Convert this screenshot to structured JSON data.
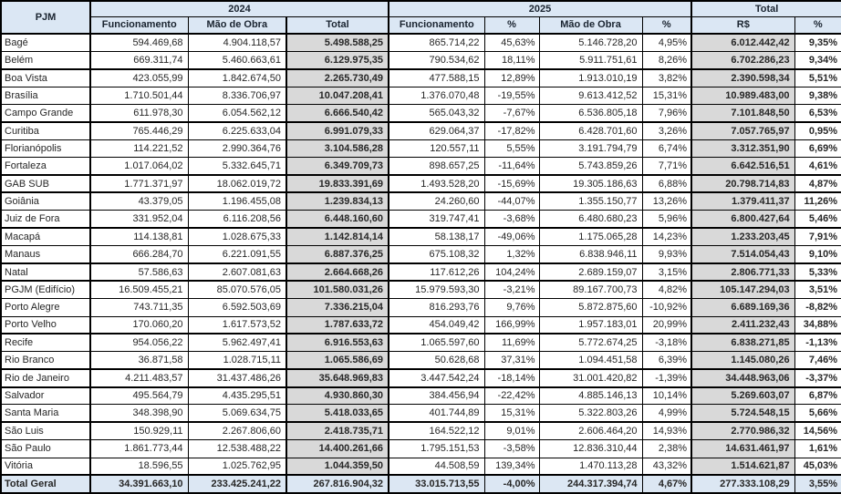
{
  "colors": {
    "header_bg": "#dbe7f4",
    "total_column_bg": "#d9d9d9",
    "total_row_bg": "#dce7f3",
    "border": "#000000"
  },
  "chart_data": {
    "type": "table",
    "corner_header": "PJM",
    "column_groups": [
      {
        "label": "2024",
        "span": 3
      },
      {
        "label": "2025",
        "span": 4
      },
      {
        "label": "Total",
        "span": 2
      }
    ],
    "columns": [
      "Funcionamento",
      "Mão de Obra",
      "Total",
      "Funcionamento",
      "%",
      "Mão de Obra",
      "%",
      "R$",
      "%"
    ],
    "rows": [
      {
        "name": "Bagé",
        "values": [
          "594.469,68",
          "4.904.118,57",
          "5.498.588,25",
          "865.714,22",
          "45,63%",
          "5.146.728,20",
          "4,95%",
          "6.012.442,42",
          "9,35%"
        ],
        "group_end": false
      },
      {
        "name": "Belém",
        "values": [
          "669.311,74",
          "5.460.663,61",
          "6.129.975,35",
          "790.534,62",
          "18,11%",
          "5.911.751,61",
          "8,26%",
          "6.702.286,23",
          "9,34%"
        ],
        "group_end": true
      },
      {
        "name": "Boa Vista",
        "values": [
          "423.055,99",
          "1.842.674,50",
          "2.265.730,49",
          "477.588,15",
          "12,89%",
          "1.913.010,19",
          "3,82%",
          "2.390.598,34",
          "5,51%"
        ],
        "group_end": false
      },
      {
        "name": "Brasília",
        "values": [
          "1.710.501,44",
          "8.336.706,97",
          "10.047.208,41",
          "1.376.070,48",
          "-19,55%",
          "9.613.412,52",
          "15,31%",
          "10.989.483,00",
          "9,38%"
        ],
        "group_end": false
      },
      {
        "name": "Campo Grande",
        "values": [
          "611.978,30",
          "6.054.562,12",
          "6.666.540,42",
          "565.043,32",
          "-7,67%",
          "6.536.805,18",
          "7,96%",
          "7.101.848,50",
          "6,53%"
        ],
        "group_end": true
      },
      {
        "name": "Curitiba",
        "values": [
          "765.446,29",
          "6.225.633,04",
          "6.991.079,33",
          "629.064,37",
          "-17,82%",
          "6.428.701,60",
          "3,26%",
          "7.057.765,97",
          "0,95%"
        ],
        "group_end": false
      },
      {
        "name": "Florianópolis",
        "values": [
          "114.221,52",
          "2.990.364,76",
          "3.104.586,28",
          "120.557,11",
          "5,55%",
          "3.191.794,79",
          "6,74%",
          "3.312.351,90",
          "6,69%"
        ],
        "group_end": false
      },
      {
        "name": "Fortaleza",
        "values": [
          "1.017.064,02",
          "5.332.645,71",
          "6.349.709,73",
          "898.657,25",
          "-11,64%",
          "5.743.859,26",
          "7,71%",
          "6.642.516,51",
          "4,61%"
        ],
        "group_end": true
      },
      {
        "name": "GAB SUB",
        "values": [
          "1.771.371,97",
          "18.062.019,72",
          "19.833.391,69",
          "1.493.528,20",
          "-15,69%",
          "19.305.186,63",
          "6,88%",
          "20.798.714,83",
          "4,87%"
        ],
        "group_end": true
      },
      {
        "name": "Goiânia",
        "values": [
          "43.379,05",
          "1.196.455,08",
          "1.239.834,13",
          "24.260,60",
          "-44,07%",
          "1.355.150,77",
          "13,26%",
          "1.379.411,37",
          "11,26%"
        ],
        "group_end": false
      },
      {
        "name": "Juiz de Fora",
        "values": [
          "331.952,04",
          "6.116.208,56",
          "6.448.160,60",
          "319.747,41",
          "-3,68%",
          "6.480.680,23",
          "5,96%",
          "6.800.427,64",
          "5,46%"
        ],
        "group_end": true
      },
      {
        "name": "Macapá",
        "values": [
          "114.138,81",
          "1.028.675,33",
          "1.142.814,14",
          "58.138,17",
          "-49,06%",
          "1.175.065,28",
          "14,23%",
          "1.233.203,45",
          "7,91%"
        ],
        "group_end": false
      },
      {
        "name": "Manaus",
        "values": [
          "666.284,70",
          "6.221.091,55",
          "6.887.376,25",
          "675.108,32",
          "1,32%",
          "6.838.946,11",
          "9,93%",
          "7.514.054,43",
          "9,10%"
        ],
        "group_end": true
      },
      {
        "name": "Natal",
        "values": [
          "57.586,63",
          "2.607.081,63",
          "2.664.668,26",
          "117.612,26",
          "104,24%",
          "2.689.159,07",
          "3,15%",
          "2.806.771,33",
          "5,33%"
        ],
        "group_end": true
      },
      {
        "name": "PGJM (Edifício)",
        "values": [
          "16.509.455,21",
          "85.070.576,05",
          "101.580.031,26",
          "15.979.593,30",
          "-3,21%",
          "89.167.700,73",
          "4,82%",
          "105.147.294,03",
          "3,51%"
        ],
        "group_end": false
      },
      {
        "name": "Porto Alegre",
        "values": [
          "743.711,35",
          "6.592.503,69",
          "7.336.215,04",
          "816.293,76",
          "9,76%",
          "5.872.875,60",
          "-10,92%",
          "6.689.169,36",
          "-8,82%"
        ],
        "group_end": false
      },
      {
        "name": "Porto Velho",
        "values": [
          "170.060,20",
          "1.617.573,52",
          "1.787.633,72",
          "454.049,42",
          "166,99%",
          "1.957.183,01",
          "20,99%",
          "2.411.232,43",
          "34,88%"
        ],
        "group_end": true
      },
      {
        "name": "Recife",
        "values": [
          "954.056,22",
          "5.962.497,41",
          "6.916.553,63",
          "1.065.597,60",
          "11,69%",
          "5.772.674,25",
          "-3,18%",
          "6.838.271,85",
          "-1,13%"
        ],
        "group_end": false
      },
      {
        "name": "Rio Branco",
        "values": [
          "36.871,58",
          "1.028.715,11",
          "1.065.586,69",
          "50.628,68",
          "37,31%",
          "1.094.451,58",
          "6,39%",
          "1.145.080,26",
          "7,46%"
        ],
        "group_end": true
      },
      {
        "name": "Rio de Janeiro",
        "values": [
          "4.211.483,57",
          "31.437.486,26",
          "35.648.969,83",
          "3.447.542,24",
          "-18,14%",
          "31.001.420,82",
          "-1,39%",
          "34.448.963,06",
          "-3,37%"
        ],
        "group_end": true
      },
      {
        "name": "Salvador",
        "values": [
          "495.564,79",
          "4.435.295,51",
          "4.930.860,30",
          "384.456,94",
          "-22,42%",
          "4.885.146,13",
          "10,14%",
          "5.269.603,07",
          "6,87%"
        ],
        "group_end": false
      },
      {
        "name": "Santa Maria",
        "values": [
          "348.398,90",
          "5.069.634,75",
          "5.418.033,65",
          "401.744,89",
          "15,31%",
          "5.322.803,26",
          "4,99%",
          "5.724.548,15",
          "5,66%"
        ],
        "group_end": true
      },
      {
        "name": "São Luis",
        "values": [
          "150.929,11",
          "2.267.806,60",
          "2.418.735,71",
          "164.522,12",
          "9,01%",
          "2.606.464,20",
          "14,93%",
          "2.770.986,32",
          "14,56%"
        ],
        "group_end": false
      },
      {
        "name": "São Paulo",
        "values": [
          "1.861.773,44",
          "12.538.488,22",
          "14.400.261,66",
          "1.795.151,53",
          "-3,58%",
          "12.836.310,44",
          "2,38%",
          "14.631.461,97",
          "1,61%"
        ],
        "group_end": false
      },
      {
        "name": "Vitória",
        "values": [
          "18.596,55",
          "1.025.762,95",
          "1.044.359,50",
          "44.508,59",
          "139,34%",
          "1.470.113,28",
          "43,32%",
          "1.514.621,87",
          "45,03%"
        ],
        "group_end": true
      }
    ],
    "total_row": {
      "name": "Total Geral",
      "values": [
        "34.391.663,10",
        "233.425.241,22",
        "267.816.904,32",
        "33.015.713,55",
        "-4,00%",
        "244.317.394,74",
        "4,67%",
        "277.333.108,29",
        "3,55%"
      ]
    }
  }
}
